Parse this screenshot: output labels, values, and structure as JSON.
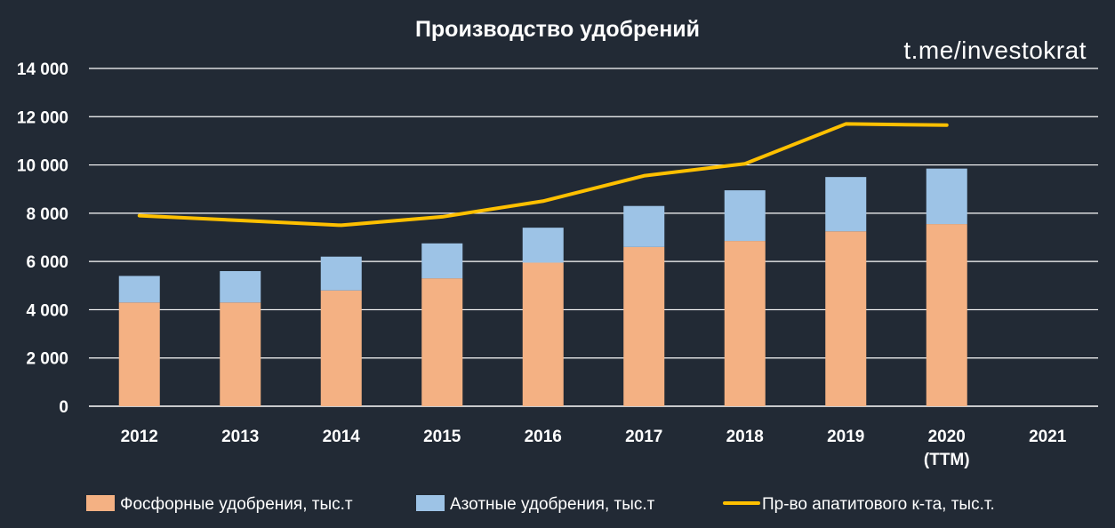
{
  "chart_data": {
    "type": "bar",
    "title": "Производство удобрений",
    "watermark": "t.me/investokrat",
    "categories": [
      "2012",
      "2013",
      "2014",
      "2015",
      "2016",
      "2017",
      "2018",
      "2019",
      "2020\n(TTM)",
      "2021"
    ],
    "ylim": [
      0,
      14000
    ],
    "yticks": [
      0,
      2000,
      4000,
      6000,
      8000,
      10000,
      12000,
      14000
    ],
    "ytick_labels": [
      "0",
      "2 000",
      "4 000",
      "6 000",
      "8 000",
      "10 000",
      "12 000",
      "14 000"
    ],
    "grid": true,
    "legend_position": "bottom",
    "series": [
      {
        "name": "Фосфорные удобрения, тыс.т",
        "kind": "bar",
        "stack": "fert",
        "color": "#f4b183",
        "values": [
          4300,
          4300,
          4800,
          5300,
          5950,
          6600,
          6850,
          7250,
          7550,
          null
        ]
      },
      {
        "name": "Азотные удобрения, тыс.т",
        "kind": "bar",
        "stack": "fert",
        "color": "#9dc3e6",
        "values": [
          1100,
          1300,
          1400,
          1450,
          1450,
          1700,
          2100,
          2250,
          2300,
          null
        ]
      },
      {
        "name": "Пр-во апатитового к-та, тыс.т.",
        "kind": "line",
        "color": "#ffc000",
        "values": [
          7900,
          7700,
          7500,
          7850,
          8500,
          9550,
          10050,
          11700,
          11650,
          null
        ]
      }
    ]
  }
}
